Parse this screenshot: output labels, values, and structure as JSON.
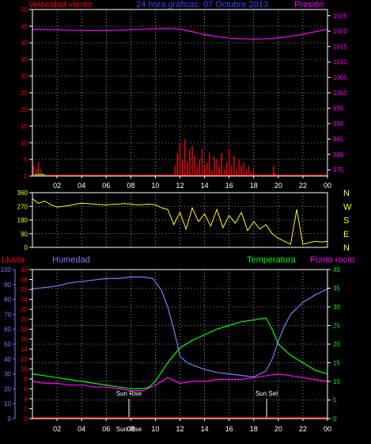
{
  "title": "24 hora gráficas: 07 Octubre 2013",
  "colors": {
    "background": "#000000",
    "wind": "#ff0000",
    "gust": "#00ff00",
    "pressure": "#ff00ff",
    "direction": "#ffff00",
    "humidity": "#7b7bff",
    "temperature": "#00ff00",
    "dewpoint": "#ff00ff",
    "rain": "#ff0000",
    "axis": "#ffffff",
    "grid": "#ffffff",
    "sun_marker": "#ffffff"
  },
  "chart_data": [
    {
      "type": "line",
      "id": "wind_pressure",
      "title": "24 hora gráficas: 07 Octubre 2013",
      "left_label": "Velocidad viento",
      "right_label": "Presión",
      "x_ticks": [
        "02",
        "04",
        "06",
        "08",
        "10",
        "12",
        "14",
        "16",
        "18",
        "20",
        "22",
        "00"
      ],
      "left_axis": {
        "range": [
          0,
          50
        ],
        "ticks": [
          0,
          5,
          10,
          15,
          20,
          25,
          30,
          35,
          40,
          45,
          50
        ]
      },
      "right_axis": {
        "range": [
          973,
          1027
        ],
        "ticks": [
          975,
          980,
          985,
          990,
          995,
          1000,
          1005,
          1010,
          1015,
          1020,
          1025
        ]
      },
      "pressure": {
        "name": "Presión",
        "x": [
          0,
          2,
          4,
          6,
          8,
          10,
          11,
          12,
          13,
          14,
          15,
          16,
          17,
          18,
          19,
          20,
          21,
          22,
          23,
          24
        ],
        "y": [
          1020.5,
          1020.4,
          1020.2,
          1020.2,
          1020.4,
          1020.8,
          1020.9,
          1020.6,
          1019.8,
          1018.9,
          1018.2,
          1017.7,
          1017.5,
          1017.4,
          1017.5,
          1017.8,
          1018.3,
          1019.0,
          1019.8,
          1020.6
        ]
      },
      "wind": {
        "name": "Velocidad viento",
        "x": [
          0.1,
          0.3,
          0.5,
          0.7,
          11.6,
          11.8,
          12.0,
          12.2,
          12.4,
          12.6,
          12.8,
          13.0,
          13.2,
          13.4,
          13.6,
          13.8,
          14.0,
          14.2,
          14.4,
          14.6,
          14.8,
          15.0,
          15.2,
          15.4,
          15.6,
          15.8,
          16.0,
          16.2,
          16.4,
          16.6,
          16.8,
          17.0,
          17.2,
          17.4,
          17.6,
          17.8,
          18.0,
          19.6,
          19.7
        ],
        "y": [
          3,
          2,
          4,
          2,
          3,
          7,
          10,
          5,
          11,
          4,
          8,
          9,
          6,
          3,
          5,
          8,
          3,
          4,
          7,
          2,
          6,
          5,
          3,
          7,
          2,
          4,
          8,
          3,
          6,
          2,
          5,
          3,
          4,
          2,
          3,
          1,
          2,
          3,
          1
        ]
      }
    },
    {
      "type": "scatter",
      "id": "wind_direction",
      "left_axis": {
        "range": [
          0,
          360
        ],
        "ticks": [
          0,
          90,
          180,
          270,
          360
        ]
      },
      "right_labels": [
        "N",
        "W",
        "S",
        "E",
        "N"
      ],
      "direction": {
        "name": "Dirección",
        "x": [
          0,
          0.5,
          1.0,
          1.5,
          2.0,
          2.5,
          3.0,
          3.5,
          4.0,
          4.5,
          5.0,
          5.5,
          6.0,
          6.5,
          7.0,
          7.5,
          8.0,
          8.5,
          9.0,
          9.5,
          10.0,
          10.5,
          11.0,
          11.5,
          12.0,
          12.5,
          13.0,
          13.5,
          14.0,
          14.5,
          15.0,
          15.5,
          16.0,
          16.5,
          17.0,
          17.5,
          18.0,
          18.5,
          19.0,
          19.5,
          20.0,
          20.5,
          21.0,
          21.5,
          22.0,
          22.5,
          23.0,
          23.5,
          24.0
        ],
        "y": [
          320,
          290,
          305,
          280,
          265,
          270,
          275,
          285,
          290,
          288,
          285,
          282,
          280,
          283,
          285,
          288,
          285,
          280,
          282,
          285,
          280,
          260,
          250,
          150,
          230,
          120,
          260,
          170,
          220,
          140,
          250,
          130,
          210,
          160,
          230,
          110,
          170,
          120,
          150,
          90,
          60,
          40,
          20,
          250,
          20,
          30,
          40,
          35,
          40
        ]
      }
    },
    {
      "type": "line",
      "id": "hum_temp_rain",
      "left_label_rain": "Lluvia",
      "left_label_humidity": "Humedad",
      "right_label_temp": "Temperatura",
      "right_label_dew": "Punto rocío",
      "x_ticks": [
        "02",
        "04",
        "06",
        "08",
        "10",
        "12",
        "14",
        "16",
        "18",
        "20",
        "22",
        "00"
      ],
      "humidity_axis": {
        "range": [
          0,
          100
        ],
        "ticks": [
          0,
          10,
          20,
          30,
          40,
          50,
          60,
          70,
          80,
          90,
          100
        ]
      },
      "rain_axis": {
        "range": [
          0,
          30
        ],
        "ticks": [
          0,
          2,
          4,
          6,
          8,
          10,
          12,
          14,
          16,
          18,
          20,
          22,
          24,
          26,
          28,
          30
        ]
      },
      "temp_axis": {
        "range": [
          0,
          40
        ],
        "ticks": [
          0,
          5,
          10,
          15,
          20,
          25,
          30,
          35,
          40
        ]
      },
      "annotations": [
        {
          "label": "Sun Rise",
          "x": 7.85
        },
        {
          "label": "Sun Set",
          "x": 19.05
        },
        {
          "label": "Sun Rise",
          "x": 7.85,
          "position": "bottom"
        }
      ],
      "humidity": {
        "name": "Humedad",
        "x": [
          0,
          1,
          2,
          3,
          4,
          5,
          6,
          7,
          8,
          9,
          9.8,
          10.5,
          11,
          11.5,
          12,
          12.5,
          13,
          14,
          15,
          16,
          17,
          18,
          19,
          19.5,
          20,
          20.5,
          21,
          22,
          23,
          24
        ],
        "y": [
          87,
          88,
          89,
          91,
          92,
          93,
          94,
          94,
          95,
          95,
          94,
          86,
          75,
          60,
          42,
          38,
          36,
          33,
          31,
          30,
          29,
          28,
          32,
          40,
          52,
          62,
          70,
          78,
          83,
          87
        ]
      },
      "temperature": {
        "name": "Temperatura",
        "x": [
          0,
          1,
          2,
          3,
          4,
          5,
          6,
          7,
          8,
          9,
          9.5,
          10,
          11,
          12,
          13,
          14,
          15,
          16,
          17,
          18,
          19,
          19.5,
          20,
          21,
          22,
          23,
          24
        ],
        "y": [
          12,
          11.5,
          11,
          10.5,
          10,
          9.5,
          9,
          8.5,
          8,
          8,
          8.5,
          10,
          15,
          19,
          21,
          22.5,
          24,
          25,
          26,
          26.5,
          27,
          24,
          20,
          17,
          15,
          13,
          12
        ]
      },
      "dewpoint": {
        "name": "Punto rocío",
        "x": [
          0,
          1,
          2,
          3,
          4,
          5,
          6,
          7,
          8,
          9,
          10,
          11,
          12,
          13,
          14,
          15,
          16,
          17,
          18,
          19,
          20,
          21,
          22,
          23,
          24
        ],
        "y": [
          10,
          9.5,
          9.5,
          9,
          9,
          8.5,
          8.5,
          8,
          7.5,
          7.5,
          9,
          11,
          9.5,
          10,
          10,
          10.5,
          10.5,
          10.5,
          11,
          11.5,
          12,
          11.5,
          11,
          10.5,
          10
        ]
      },
      "rain": {
        "name": "Lluvia",
        "x": [
          0,
          24
        ],
        "y": [
          0,
          0
        ]
      }
    }
  ]
}
